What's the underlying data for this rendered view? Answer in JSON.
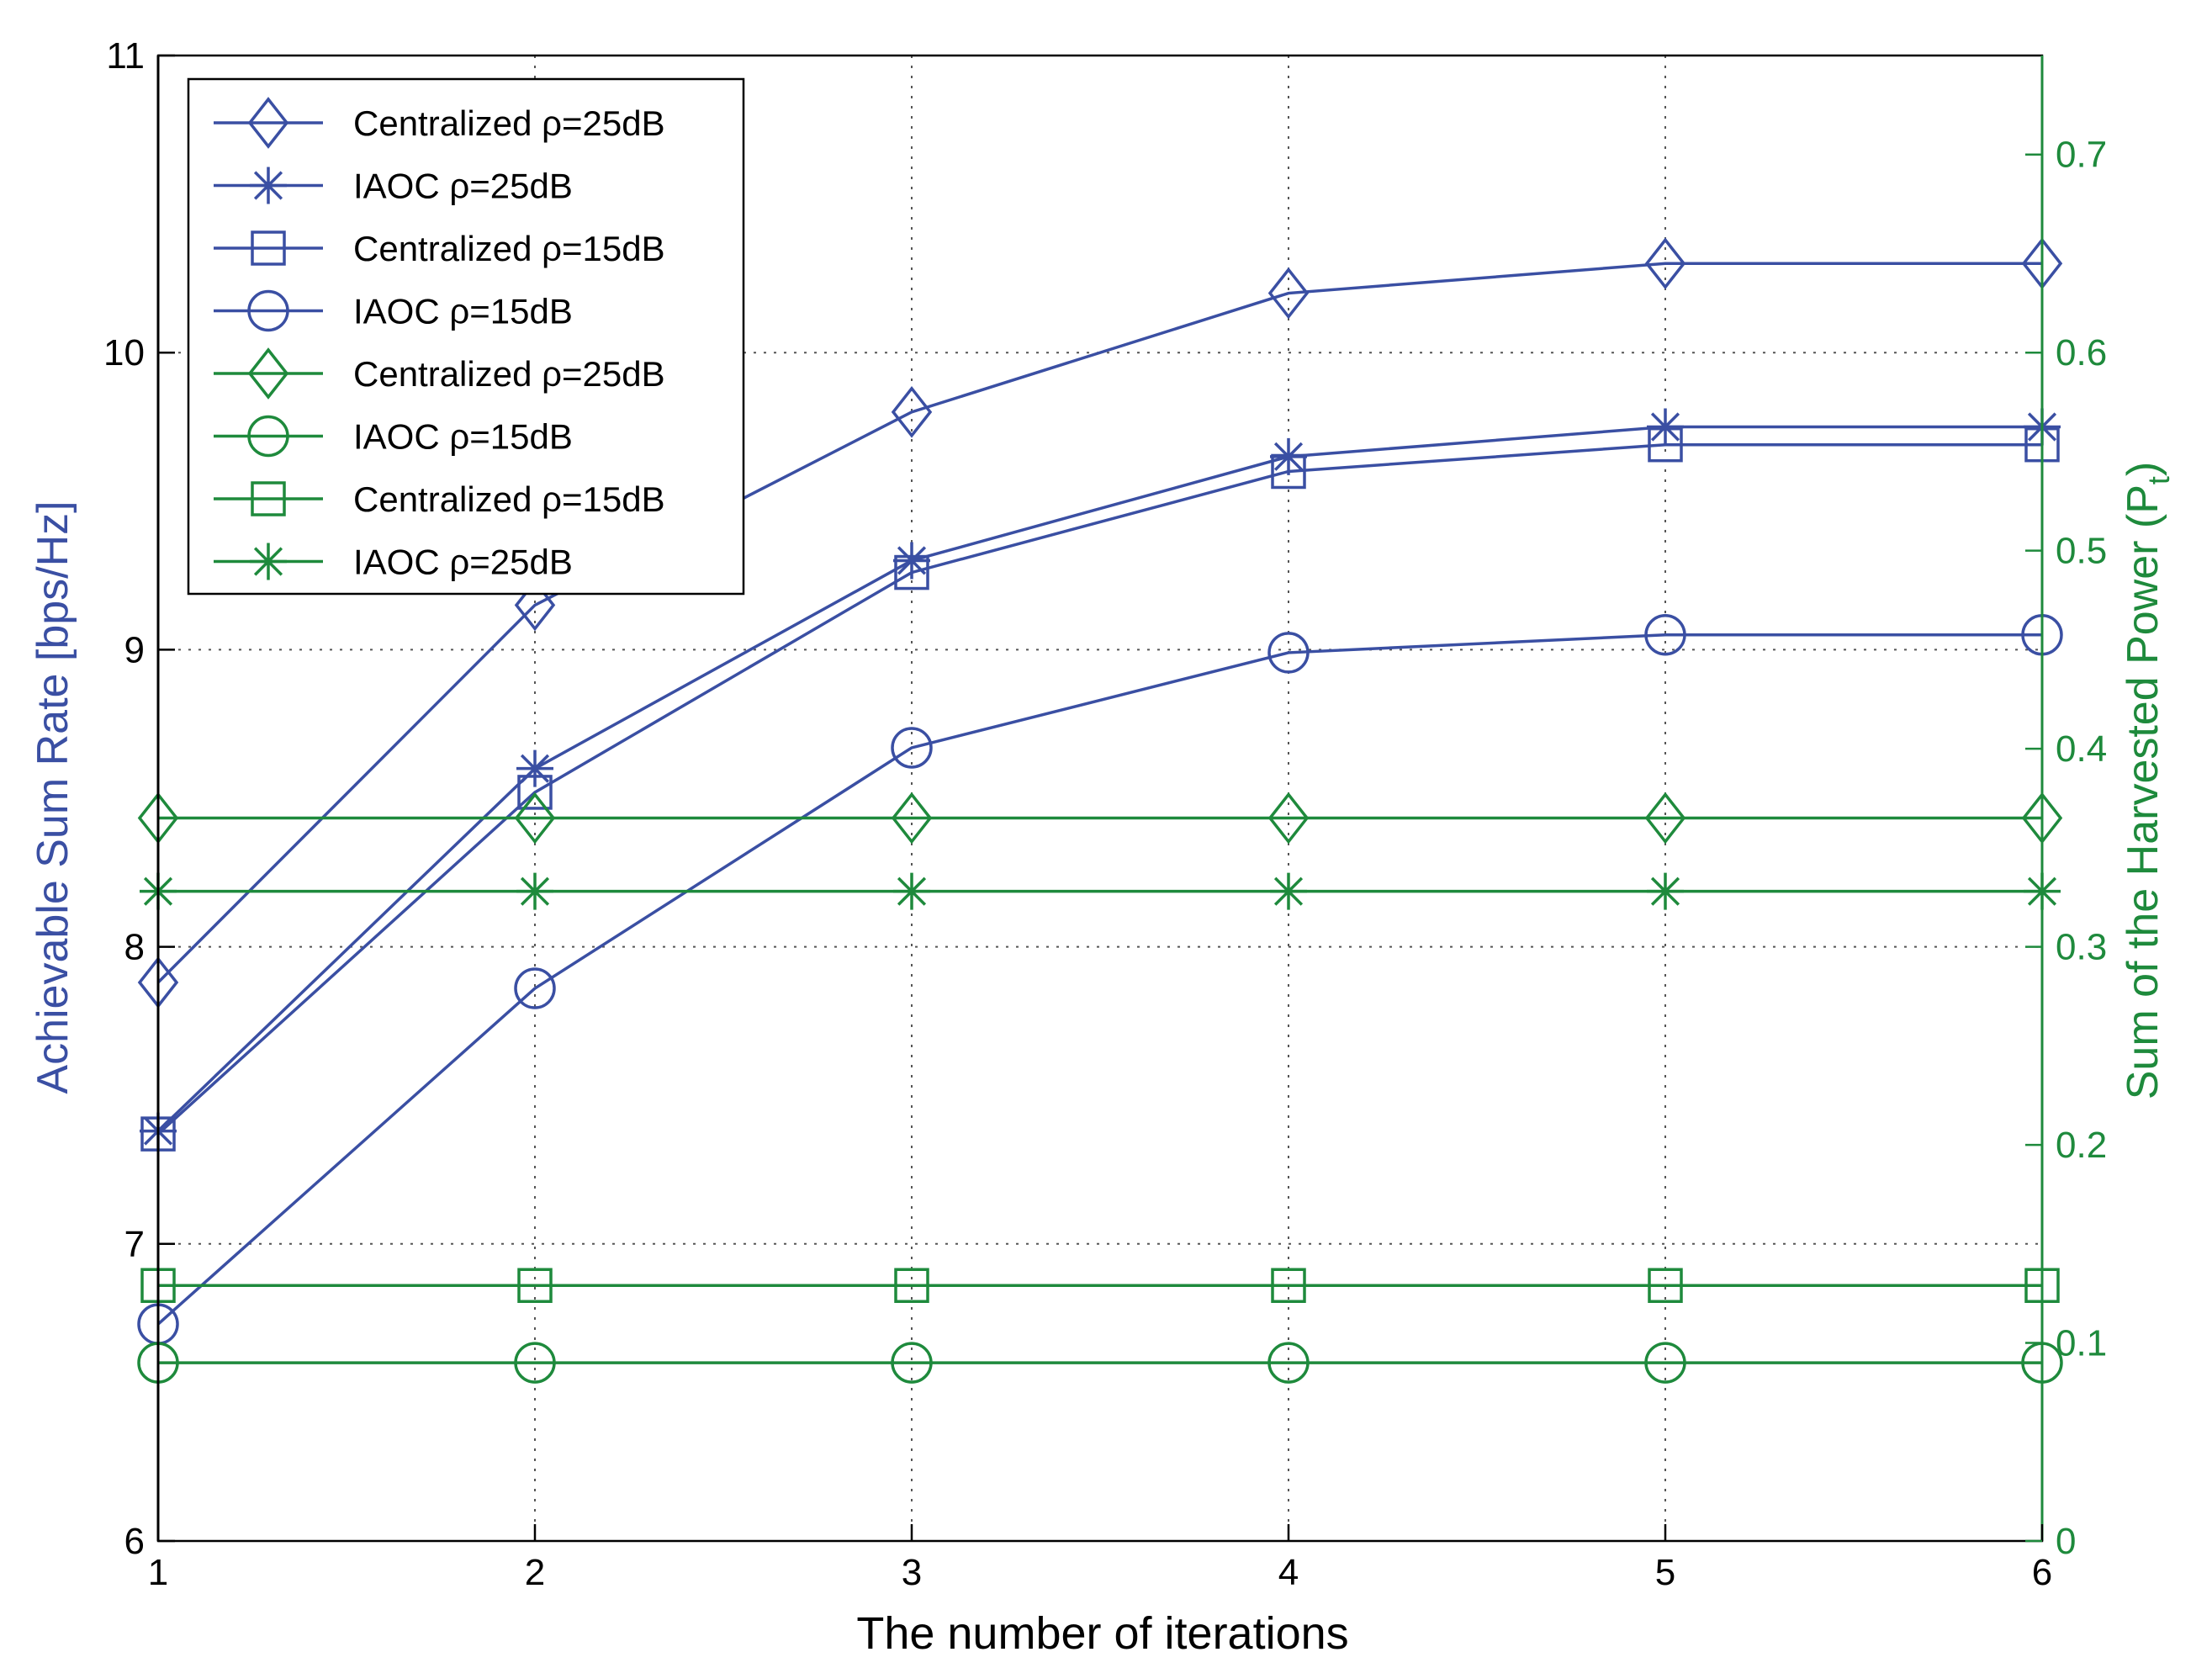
{
  "chart_data": {
    "type": "line",
    "xlabel": "The number of iterations",
    "ylabel_left": "Achievable Sum Rate [bps/Hz]",
    "ylabel_right_main": "Sum of the Harvested Power (P",
    "ylabel_right_sub": "t",
    "ylabel_right_close": ")",
    "xlim": [
      1,
      6
    ],
    "ylim_left": [
      6,
      11
    ],
    "ylim_right": [
      0,
      0.75
    ],
    "grid": true,
    "legend_position": "top-left",
    "x": [
      1,
      2,
      3,
      4,
      5,
      6
    ],
    "x_ticks": [
      "1",
      "2",
      "3",
      "4",
      "5",
      "6"
    ],
    "y_left_ticks": [
      6,
      7,
      8,
      9,
      10,
      11
    ],
    "y_left_tick_labels": [
      "6",
      "7",
      "8",
      "9",
      "10",
      "11"
    ],
    "y_right_ticks": [
      0,
      0.1,
      0.2,
      0.3,
      0.4,
      0.5,
      0.6,
      0.7
    ],
    "y_right_tick_labels": [
      "0",
      "0.1",
      "0.2",
      "0.3",
      "0.4",
      "0.5",
      "0.6",
      "0.7"
    ],
    "colors": {
      "blue": "#3a4fa3",
      "green": "#1e8a3c",
      "grid": "#555555"
    },
    "series": [
      {
        "name": "Centralized ρ=25dB",
        "axis": "left",
        "color": "blue",
        "marker": "diamond",
        "values": [
          7.88,
          9.15,
          9.8,
          10.2,
          10.3,
          10.3
        ]
      },
      {
        "name": "IAOC  ρ=25dB",
        "axis": "left",
        "color": "blue",
        "marker": "star",
        "values": [
          7.38,
          8.6,
          9.3,
          9.65,
          9.75,
          9.75
        ]
      },
      {
        "name": "Centralized ρ=15dB",
        "axis": "left",
        "color": "blue",
        "marker": "square",
        "values": [
          7.37,
          8.52,
          9.26,
          9.6,
          9.69,
          9.69
        ]
      },
      {
        "name": "IAOC  ρ=15dB",
        "axis": "left",
        "color": "blue",
        "marker": "circle",
        "values": [
          6.73,
          7.86,
          8.67,
          8.99,
          9.05,
          9.05
        ]
      },
      {
        "name": "Centralized  ρ=25dB",
        "axis": "right",
        "color": "green",
        "marker": "diamond",
        "values": [
          0.365,
          0.365,
          0.365,
          0.365,
          0.365,
          0.365
        ]
      },
      {
        "name": "IAOC  ρ=15dB",
        "axis": "right",
        "color": "green",
        "marker": "circle",
        "values": [
          0.09,
          0.09,
          0.09,
          0.09,
          0.09,
          0.09
        ]
      },
      {
        "name": "Centralized  ρ=15dB",
        "axis": "right",
        "color": "green",
        "marker": "square",
        "values": [
          0.129,
          0.129,
          0.129,
          0.129,
          0.129,
          0.129
        ]
      },
      {
        "name": "IAOC ρ=25dB",
        "axis": "right",
        "color": "green",
        "marker": "star",
        "values": [
          0.328,
          0.328,
          0.328,
          0.328,
          0.328,
          0.328
        ]
      }
    ]
  }
}
